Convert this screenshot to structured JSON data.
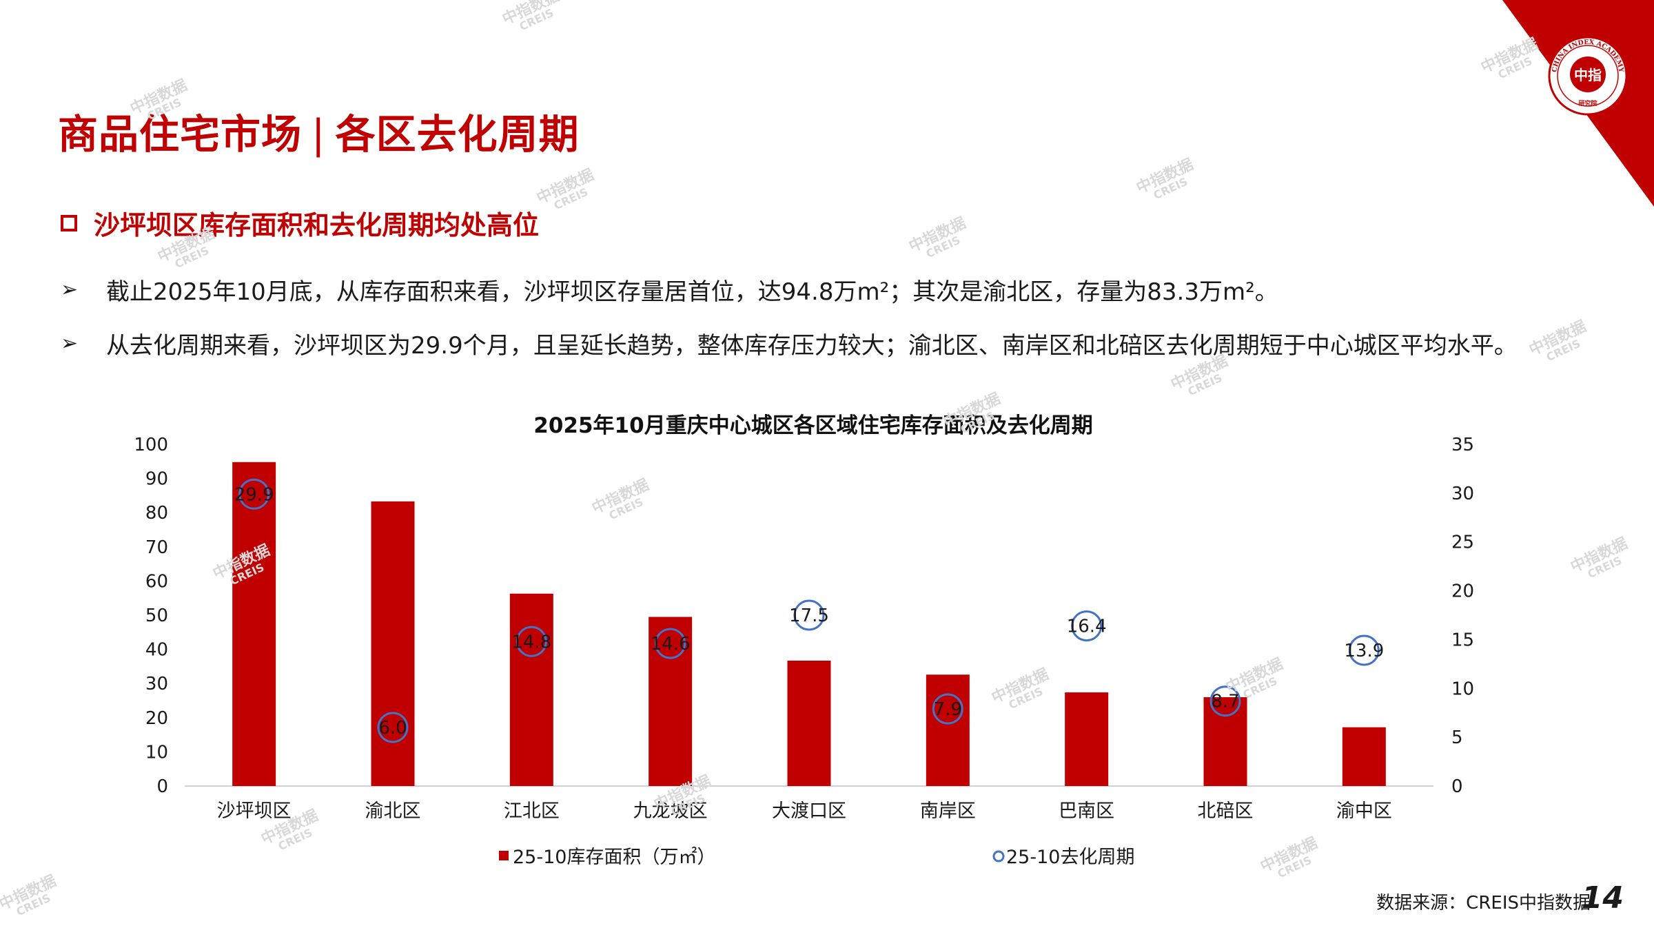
{
  "header": {
    "title_left": "商品住宅市场",
    "title_right": "各区去化周期",
    "logo_text": "中指",
    "logo_ring_text": "CHINA INDEX ACADEMY",
    "logo_bottom_text": "研究院"
  },
  "section": {
    "heading": "沙坪坝区库存面积和去化周期均处高位"
  },
  "bullets": [
    {
      "arrow": "➢",
      "text": "截止2025年10月底，从库存面积来看，沙坪坝区存量居首位，达94.8万m²；其次是渝北区，存量为83.3万m²。"
    },
    {
      "arrow": "➢",
      "text": "从去化周期来看，沙坪坝区为29.9个月，且呈延长趋势，整体库存压力较大；渝北区、南岸区和北碚区去化周期短于中心城区平均水平。"
    }
  ],
  "chart_data": {
    "type": "bar",
    "title": "2025年10月重庆中心城区各区域住宅库存面积及去化周期",
    "categories": [
      "沙坪坝区",
      "渝北区",
      "江北区",
      "九龙坡区",
      "大渡口区",
      "南岸区",
      "巴南区",
      "北碚区",
      "渝中区"
    ],
    "series": [
      {
        "name": "25-10库存面积（万㎡）",
        "type": "bar",
        "axis": "left",
        "color": "#c00000",
        "values": [
          94.8,
          83.3,
          56.3,
          49.5,
          36.7,
          32.6,
          27.4,
          26.0,
          17.2
        ]
      },
      {
        "name": "25-10去化周期",
        "type": "scatter",
        "axis": "right",
        "color": "#4472c4",
        "values": [
          29.9,
          6.0,
          14.8,
          14.6,
          17.5,
          7.9,
          16.4,
          8.7,
          13.9
        ]
      }
    ],
    "y_left": {
      "min": 0,
      "max": 100,
      "ticks": [
        "0",
        "10",
        "20",
        "30",
        "40",
        "50",
        "60",
        "70",
        "80",
        "90",
        "100"
      ]
    },
    "y_right": {
      "min": 0,
      "max": 35,
      "ticks": [
        "0",
        "5",
        "10",
        "15",
        "20",
        "25",
        "30",
        "35"
      ]
    },
    "grid": false,
    "legend_position": "bottom"
  },
  "legend": {
    "bar_label": "25-10库存面积（万㎡）",
    "marker_label": "25-10去化周期"
  },
  "footer": {
    "source": "数据来源：CREIS中指数据",
    "page_number": "14"
  },
  "watermark": {
    "line1": "中指数据",
    "line2": "CREIS"
  },
  "colors": {
    "accent": "#c00000",
    "marker": "#4472c4"
  }
}
